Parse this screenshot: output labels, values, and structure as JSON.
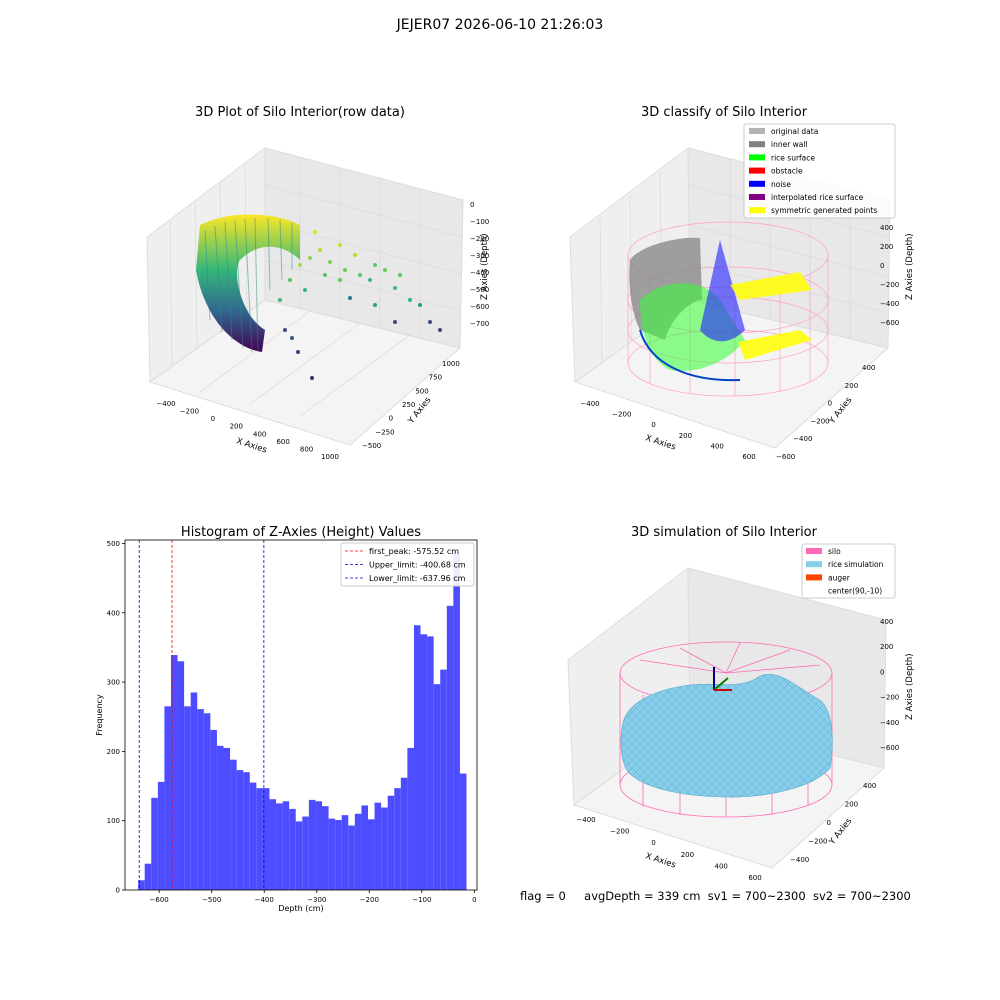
{
  "figure": {
    "suptitle": "JEJER07 2026-06-10 21:26:03",
    "status": {
      "flag": "flag = 0",
      "avg": "avgDepth = 339 cm",
      "sv1": "sv1 = 700~2300",
      "sv2": "sv2 = 700~2300"
    }
  },
  "panels": {
    "raw": {
      "title": "3D Plot of Silo Interior(row data)",
      "xlabel": "X Axies",
      "ylabel": "Y Axies",
      "zlabel": "Z Axies (Depth)",
      "xticks": [
        "−400",
        "−200",
        "0",
        "200",
        "400",
        "600",
        "800",
        "1000"
      ],
      "yticks": [
        "1000",
        "750",
        "500",
        "250",
        "0",
        "−250",
        "−500"
      ],
      "zticks": [
        "0",
        "−100",
        "−200",
        "−300",
        "−400",
        "−500",
        "−600",
        "−700"
      ]
    },
    "classify": {
      "title": "3D classify of Silo Interior",
      "xlabel": "X Axies",
      "ylabel": "Y Axies",
      "zlabel": "Z Axies (Depth)",
      "xticks": [
        "−400",
        "−200",
        "0",
        "200",
        "400",
        "600"
      ],
      "yticks": [
        "400",
        "200",
        "0",
        "−200",
        "−400",
        "−600"
      ],
      "zticks": [
        "400",
        "200",
        "0",
        "−200",
        "−400",
        "−600"
      ],
      "legend": [
        {
          "label": "original data",
          "color": "#b3b3b3"
        },
        {
          "label": "inner wall",
          "color": "#808080"
        },
        {
          "label": "rice surface",
          "color": "#00ff00"
        },
        {
          "label": "obstacle",
          "color": "#ff0000"
        },
        {
          "label": "noise",
          "color": "#0000ff"
        },
        {
          "label": "interpolated rice surface",
          "color": "#800080"
        },
        {
          "label": "symmetric generated points",
          "color": "#ffff00"
        }
      ]
    },
    "simulation": {
      "title": "3D simulation of Silo Interior",
      "xlabel": "X Axies",
      "ylabel": "Y Axies",
      "zlabel": "Z Axies (Depth)",
      "xticks": [
        "−400",
        "−200",
        "0",
        "200",
        "400",
        "600"
      ],
      "yticks": [
        "400",
        "200",
        "0",
        "−200",
        "−400"
      ],
      "zticks": [
        "400",
        "200",
        "0",
        "−200",
        "−400",
        "−600"
      ],
      "legend": [
        {
          "label": "silo",
          "color": "#ff69b4"
        },
        {
          "label": "rice simulation",
          "color": "#87ceeb"
        },
        {
          "label": "auger",
          "color": "#ff4500"
        },
        {
          "label": "center(90,-10)",
          "color": ""
        }
      ]
    }
  },
  "chart_data": {
    "type": "bar",
    "title": "Histogram of Z-Axies (Height) Values",
    "xlabel": "Depth (cm)",
    "ylabel": "Frequency",
    "xlim": [
      -665,
      5
    ],
    "ylim": [
      0,
      505
    ],
    "xticks": [
      -600,
      -500,
      -400,
      -300,
      -200,
      -100,
      0
    ],
    "xtick_labels": [
      "−600",
      "−500",
      "−400",
      "−300",
      "−200",
      "−100",
      "0"
    ],
    "yticks": [
      0,
      100,
      200,
      300,
      400,
      500
    ],
    "bar_color": "#4d4dff",
    "bin_start": -640,
    "bin_width": 12.5,
    "values": [
      14,
      38,
      133,
      156,
      265,
      339,
      330,
      265,
      285,
      261,
      255,
      231,
      208,
      205,
      188,
      173,
      170,
      155,
      147,
      147,
      131,
      125,
      128,
      117,
      99,
      106,
      130,
      128,
      121,
      103,
      101,
      108,
      93,
      110,
      122,
      102,
      126,
      119,
      136,
      147,
      162,
      205,
      382,
      369,
      366,
      297,
      318,
      410,
      485,
      168
    ],
    "vlines": [
      {
        "x": -575.52,
        "color": "#ff0000",
        "label": "first_peak: -575.52 cm"
      },
      {
        "x": -400.68,
        "color": "#0000cc",
        "label": "Upper_limit: -400.68 cm"
      },
      {
        "x": -637.96,
        "color": "#0000cc",
        "label": "Lower_limit: -637.96 cm"
      }
    ],
    "legend_position": "top-right"
  }
}
